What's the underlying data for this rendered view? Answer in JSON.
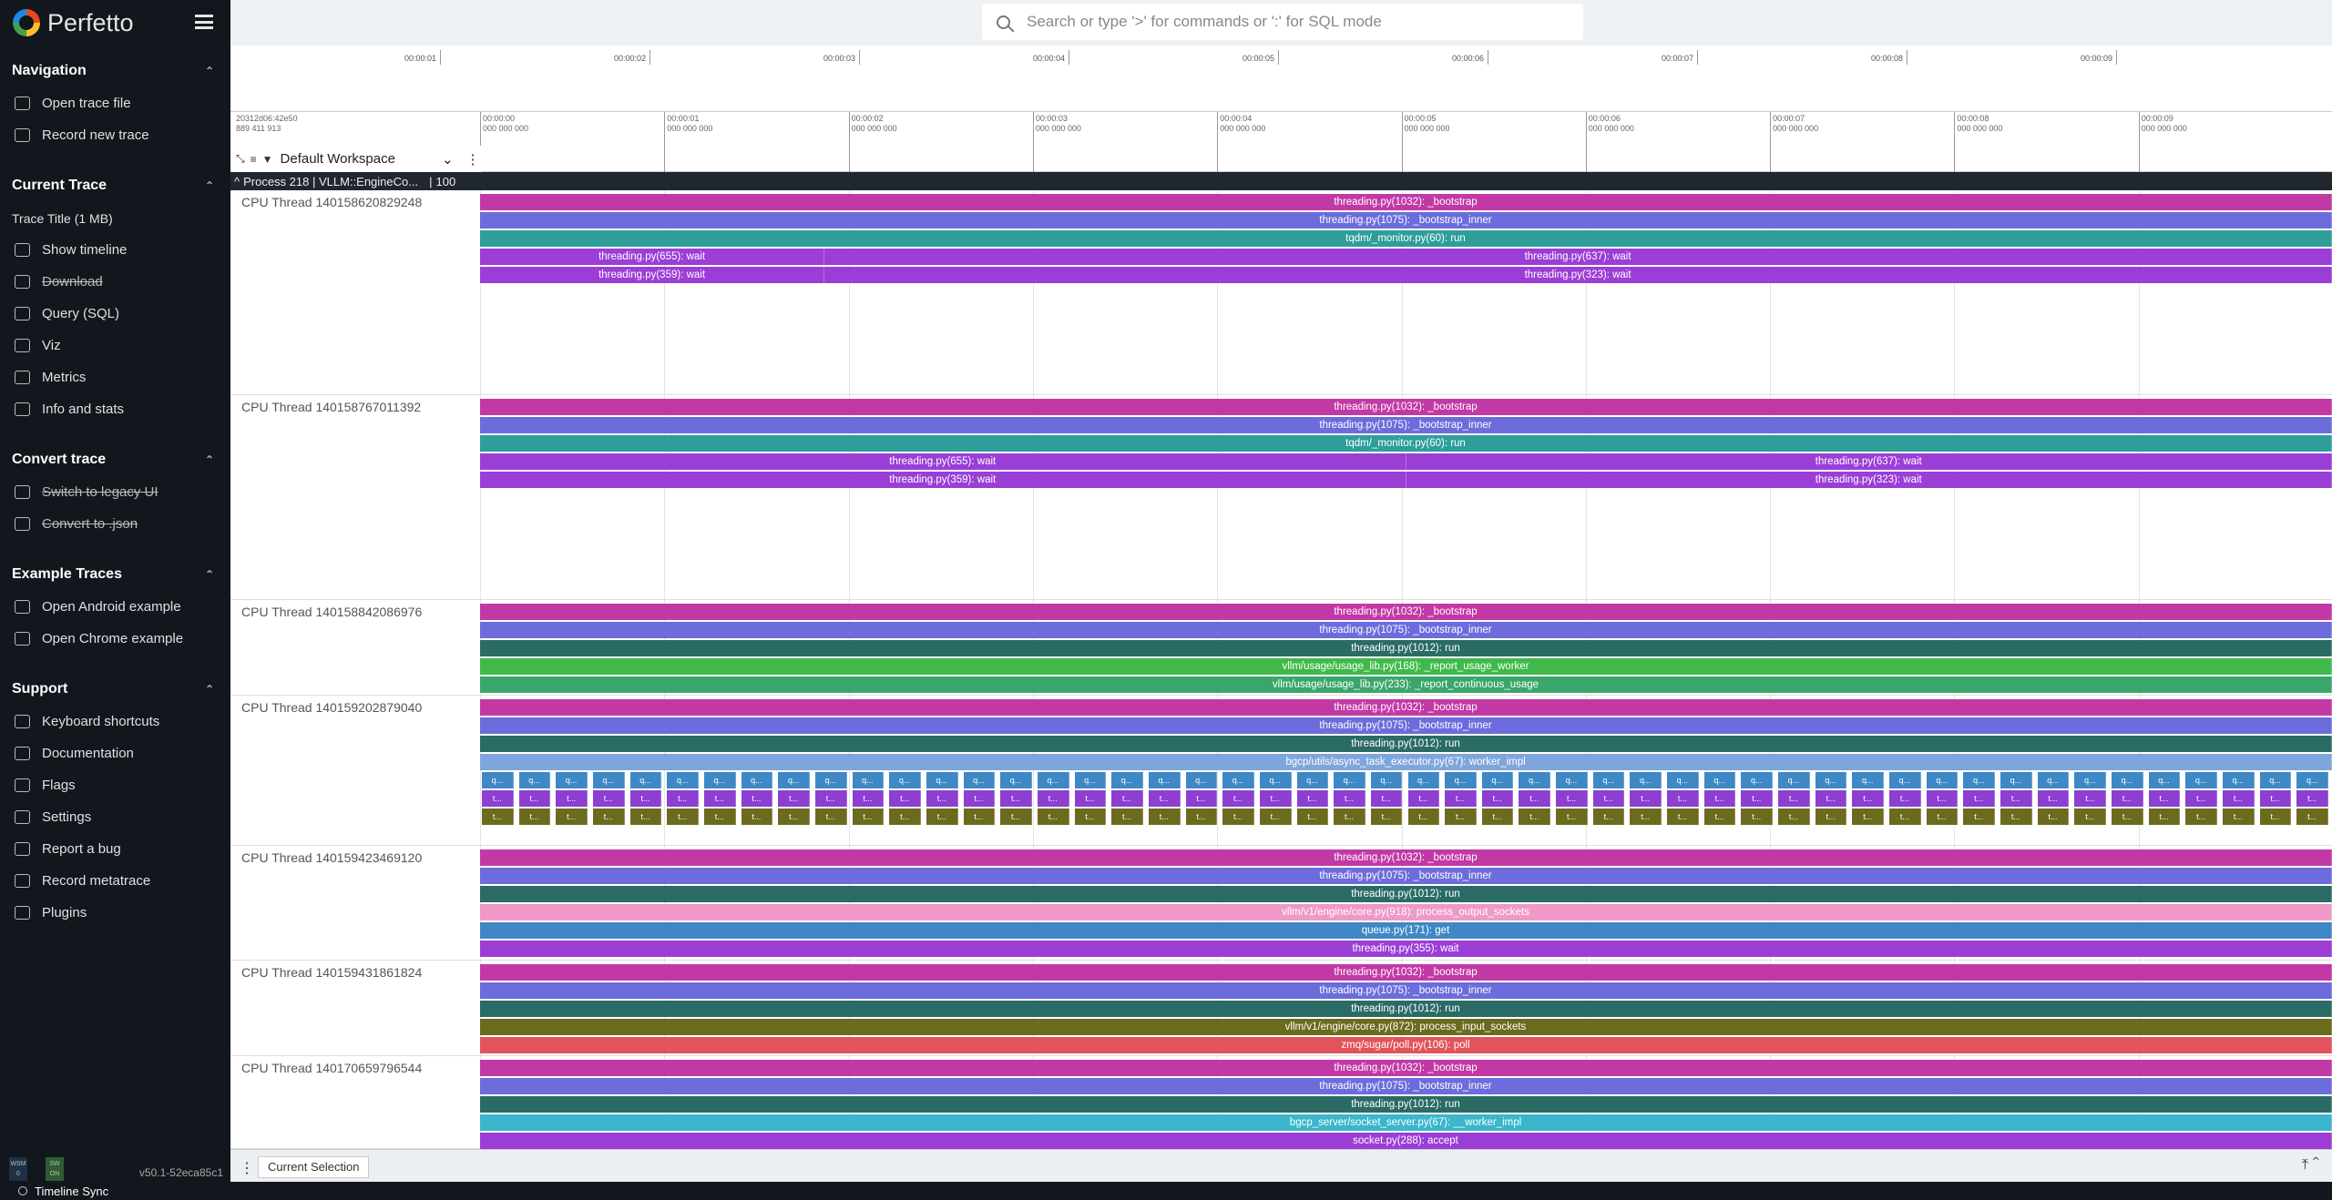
{
  "sidebar": {
    "brand": "Perfetto",
    "sections": [
      {
        "title": "Navigation",
        "items": [
          {
            "label": "Open trace file",
            "icon": "folder-icon",
            "strike": false
          },
          {
            "label": "Record new trace",
            "icon": "record-icon",
            "strike": false
          }
        ]
      },
      {
        "title": "Current Trace",
        "subtitle": "Trace Title (1 MB)",
        "items": [
          {
            "label": "Show timeline",
            "icon": "timeline-icon",
            "strike": false
          },
          {
            "label": "Download",
            "icon": "download-icon",
            "strike": true
          },
          {
            "label": "Query (SQL)",
            "icon": "database-icon",
            "strike": false
          },
          {
            "label": "Viz",
            "icon": "chart-icon",
            "strike": false
          },
          {
            "label": "Metrics",
            "icon": "metrics-icon",
            "strike": false
          },
          {
            "label": "Info and stats",
            "icon": "info-icon",
            "strike": false
          }
        ]
      },
      {
        "title": "Convert trace",
        "items": [
          {
            "label": "Switch to legacy UI",
            "icon": "switch-icon",
            "strike": true
          },
          {
            "label": "Convert to .json",
            "icon": "download-icon",
            "strike": true
          }
        ]
      },
      {
        "title": "Example Traces",
        "items": [
          {
            "label": "Open Android example",
            "icon": "file-icon",
            "strike": false
          },
          {
            "label": "Open Chrome example",
            "icon": "file-icon",
            "strike": false
          }
        ]
      },
      {
        "title": "Support",
        "items": [
          {
            "label": "Keyboard shortcuts",
            "icon": "help-icon",
            "strike": false
          },
          {
            "label": "Documentation",
            "icon": "book-icon",
            "strike": false
          },
          {
            "label": "Flags",
            "icon": "flag-icon",
            "strike": false
          },
          {
            "label": "Settings",
            "icon": "gear-icon",
            "strike": false
          },
          {
            "label": "Report a bug",
            "icon": "bug-icon",
            "strike": false
          },
          {
            "label": "Record metatrace",
            "icon": "record-icon",
            "strike": false
          },
          {
            "label": "Plugins",
            "icon": "plugin-icon",
            "strike": false
          }
        ]
      }
    ],
    "footer": {
      "badge1": "WSM",
      "badge1_sub": "0",
      "badge2": "SW",
      "badge2_sub": "ON",
      "version": "v50.1-52eca85c1",
      "timeline_sync": "Timeline Sync"
    }
  },
  "search": {
    "placeholder": "Search or type '>' for commands or ':' for SQL mode"
  },
  "overview": {
    "labels": [
      "00:00:01",
      "00:00:02",
      "00:00:03",
      "00:00:04",
      "00:00:05",
      "00:00:06",
      "00:00:07",
      "00:00:08",
      "00:00:09"
    ]
  },
  "timeaxis": {
    "start_line1": "20312d06:42e50",
    "start_line2": "889 411 913",
    "labels": [
      "00:00:00",
      "00:00:01",
      "00:00:02",
      "00:00:03",
      "00:00:04",
      "00:00:05",
      "00:00:06",
      "00:00:07",
      "00:00:08",
      "00:00:09"
    ],
    "sublabel": "000 000 000"
  },
  "workspace": {
    "name": "Default Workspace"
  },
  "process": {
    "label": "Process 218 | VLLM::EngineCo...",
    "count": "100"
  },
  "tracks": [
    {
      "title": "CPU Thread 140158620829248",
      "height": 225,
      "rows": [
        [
          {
            "s": 0,
            "e": 1,
            "label": "threading.py(1032): _bootstrap",
            "color": "#c239a6"
          }
        ],
        [
          {
            "s": 0,
            "e": 1,
            "label": "threading.py(1075): _bootstrap_inner",
            "color": "#6c6cdc"
          }
        ],
        [
          {
            "s": 0,
            "e": 1,
            "label": "tqdm/_monitor.py(60): run",
            "color": "#2e9e9b"
          }
        ],
        [
          {
            "s": 0,
            "e": 0.186,
            "label": "threading.py(655): wait",
            "color": "#9b3ed6"
          },
          {
            "s": 0.186,
            "e": 1,
            "label": "threading.py(637): wait",
            "color": "#9b3ed6"
          }
        ],
        [
          {
            "s": 0,
            "e": 0.186,
            "label": "threading.py(359): wait",
            "color": "#9b3ed6"
          },
          {
            "s": 0.186,
            "e": 1,
            "label": "threading.py(323): wait",
            "color": "#9b3ed6"
          }
        ]
      ]
    },
    {
      "title": "CPU Thread 140158767011392",
      "height": 225,
      "rows": [
        [
          {
            "s": 0,
            "e": 1,
            "label": "threading.py(1032): _bootstrap",
            "color": "#c239a6"
          }
        ],
        [
          {
            "s": 0,
            "e": 1,
            "label": "threading.py(1075): _bootstrap_inner",
            "color": "#6c6cdc"
          }
        ],
        [
          {
            "s": 0,
            "e": 1,
            "label": "tqdm/_monitor.py(60): run",
            "color": "#2e9e9b"
          }
        ],
        [
          {
            "s": 0,
            "e": 0.5,
            "label": "threading.py(655): wait",
            "color": "#9b3ed6"
          },
          {
            "s": 0.5,
            "e": 1,
            "label": "threading.py(637): wait",
            "color": "#9b3ed6"
          }
        ],
        [
          {
            "s": 0,
            "e": 0.5,
            "label": "threading.py(359): wait",
            "color": "#9b3ed6"
          },
          {
            "s": 0.5,
            "e": 1,
            "label": "threading.py(323): wait",
            "color": "#9b3ed6"
          }
        ]
      ]
    },
    {
      "title": "CPU Thread 140158842086976",
      "height": 105,
      "rows": [
        [
          {
            "s": 0,
            "e": 1,
            "label": "threading.py(1032): _bootstrap",
            "color": "#c239a6"
          }
        ],
        [
          {
            "s": 0,
            "e": 1,
            "label": "threading.py(1075): _bootstrap_inner",
            "color": "#6c6cdc"
          }
        ],
        [
          {
            "s": 0,
            "e": 1,
            "label": "threading.py(1012): run",
            "color": "#2b6b66"
          }
        ],
        [
          {
            "s": 0,
            "e": 1,
            "label": "vllm/usage/usage_lib.py(168): _report_usage_worker",
            "color": "#3fba4a"
          }
        ],
        [
          {
            "s": 0,
            "e": 1,
            "label": "vllm/usage/usage_lib.py(233): _report_continuous_usage",
            "color": "#3aa66b"
          }
        ]
      ]
    },
    {
      "title": "CPU Thread 140159202879040",
      "height": 165,
      "rows": [
        [
          {
            "s": 0,
            "e": 1,
            "label": "threading.py(1032): _bootstrap",
            "color": "#c239a6"
          }
        ],
        [
          {
            "s": 0,
            "e": 1,
            "label": "threading.py(1075): _bootstrap_inner",
            "color": "#6c6cdc"
          }
        ],
        [
          {
            "s": 0,
            "e": 1,
            "label": "threading.py(1012): run",
            "color": "#2b6b66"
          }
        ],
        [
          {
            "s": 0,
            "e": 1,
            "label": "bgcp/utils/async_task_executor.py(67): worker_impl",
            "color": "#7fa6dc"
          }
        ]
      ],
      "repeat": {
        "label_rows": [
          "q...",
          "t...",
          "t..."
        ],
        "colors": [
          "#3f88c5",
          "#8c3fd1",
          "#6b6b1e"
        ],
        "count": 50
      }
    },
    {
      "title": "CPU Thread 140159423469120",
      "height": 126,
      "rows": [
        [
          {
            "s": 0,
            "e": 1,
            "label": "threading.py(1032): _bootstrap",
            "color": "#c239a6"
          }
        ],
        [
          {
            "s": 0,
            "e": 1,
            "label": "threading.py(1075): _bootstrap_inner",
            "color": "#6c6cdc"
          }
        ],
        [
          {
            "s": 0,
            "e": 1,
            "label": "threading.py(1012): run",
            "color": "#2b6b66"
          }
        ],
        [
          {
            "s": 0,
            "e": 1,
            "label": "vllm/v1/engine/core.py(918): process_output_sockets",
            "color": "#ee99c7"
          }
        ],
        [
          {
            "s": 0,
            "e": 1,
            "label": "queue.py(171): get",
            "color": "#3f88c5"
          }
        ],
        [
          {
            "s": 0,
            "e": 1,
            "label": "threading.py(355): wait",
            "color": "#9b3ed6"
          }
        ]
      ]
    },
    {
      "title": "CPU Thread 140159431861824",
      "height": 105,
      "rows": [
        [
          {
            "s": 0,
            "e": 1,
            "label": "threading.py(1032): _bootstrap",
            "color": "#c239a6"
          }
        ],
        [
          {
            "s": 0,
            "e": 1,
            "label": "threading.py(1075): _bootstrap_inner",
            "color": "#6c6cdc"
          }
        ],
        [
          {
            "s": 0,
            "e": 1,
            "label": "threading.py(1012): run",
            "color": "#2b6b66"
          }
        ],
        [
          {
            "s": 0,
            "e": 1,
            "label": "vllm/v1/engine/core.py(872): process_input_sockets",
            "color": "#6b6b1e"
          }
        ],
        [
          {
            "s": 0,
            "e": 1,
            "label": "zmq/sugar/poll.py(106): poll",
            "color": "#e2535c"
          }
        ]
      ]
    },
    {
      "title": "CPU Thread 140170659796544",
      "height": 102,
      "rows": [
        [
          {
            "s": 0,
            "e": 1,
            "label": "threading.py(1032): _bootstrap",
            "color": "#c239a6"
          }
        ],
        [
          {
            "s": 0,
            "e": 1,
            "label": "threading.py(1075): _bootstrap_inner",
            "color": "#6c6cdc"
          }
        ],
        [
          {
            "s": 0,
            "e": 1,
            "label": "threading.py(1012): run",
            "color": "#2b6b66"
          }
        ],
        [
          {
            "s": 0,
            "e": 1,
            "label": "bgcp_server/socket_server.py(67): __worker_impl",
            "color": "#3bb6cc"
          }
        ],
        [
          {
            "s": 0,
            "e": 1,
            "label": "socket.py(288): accept",
            "color": "#9b3ed6"
          }
        ]
      ]
    }
  ],
  "bottombar": {
    "tab": "Current Selection"
  }
}
